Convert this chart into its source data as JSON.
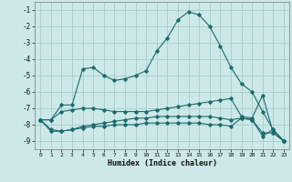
{
  "xlabel": "Humidex (Indice chaleur)",
  "bg_color": "#cce8e8",
  "grid_color": "#aacccc",
  "line_color": "#1a6b6b",
  "xlim": [
    -0.5,
    23.5
  ],
  "ylim": [
    -9.5,
    -0.5
  ],
  "yticks": [
    -1,
    -2,
    -3,
    -4,
    -5,
    -6,
    -7,
    -8,
    -9
  ],
  "xticks": [
    0,
    1,
    2,
    3,
    4,
    5,
    6,
    7,
    8,
    9,
    10,
    11,
    12,
    13,
    14,
    15,
    16,
    17,
    18,
    19,
    20,
    21,
    22,
    23
  ],
  "series1_x": [
    0,
    1,
    2,
    3,
    4,
    5,
    6,
    7,
    8,
    9,
    10,
    11,
    12,
    13,
    14,
    15,
    16,
    17,
    18,
    19,
    20,
    21,
    22,
    23
  ],
  "series1_y": [
    -7.7,
    -7.7,
    -6.8,
    -6.8,
    -4.6,
    -4.5,
    -5.0,
    -5.3,
    -5.2,
    -5.0,
    -4.7,
    -3.5,
    -2.7,
    -1.6,
    -1.1,
    -1.3,
    -2.0,
    -3.2,
    -4.5,
    -5.5,
    -6.0,
    -7.2,
    -8.3,
    -9.0
  ],
  "series2_x": [
    0,
    1,
    2,
    3,
    4,
    5,
    6,
    7,
    8,
    9,
    10,
    11,
    12,
    13,
    14,
    15,
    16,
    17,
    18,
    19,
    20,
    21,
    22,
    23
  ],
  "series2_y": [
    -7.7,
    -7.7,
    -7.2,
    -7.1,
    -7.0,
    -7.0,
    -7.1,
    -7.2,
    -7.2,
    -7.2,
    -7.2,
    -7.1,
    -7.0,
    -6.9,
    -6.8,
    -6.7,
    -6.6,
    -6.5,
    -6.4,
    -7.5,
    -7.6,
    -6.2,
    -8.5,
    -9.0
  ],
  "series3_x": [
    0,
    1,
    2,
    3,
    4,
    5,
    6,
    7,
    8,
    9,
    10,
    11,
    12,
    13,
    14,
    15,
    16,
    17,
    18,
    19,
    20,
    21,
    22,
    23
  ],
  "series3_y": [
    -7.7,
    -8.3,
    -8.4,
    -8.3,
    -8.1,
    -8.0,
    -7.9,
    -7.8,
    -7.7,
    -7.6,
    -7.6,
    -7.5,
    -7.5,
    -7.5,
    -7.5,
    -7.5,
    -7.5,
    -7.6,
    -7.7,
    -7.6,
    -7.7,
    -8.5,
    -8.5,
    -9.0
  ],
  "series4_x": [
    0,
    1,
    2,
    3,
    4,
    5,
    6,
    7,
    8,
    9,
    10,
    11,
    12,
    13,
    14,
    15,
    16,
    17,
    18,
    19,
    20,
    21,
    22,
    23
  ],
  "series4_y": [
    -7.7,
    -8.4,
    -8.4,
    -8.3,
    -8.2,
    -8.1,
    -8.1,
    -8.0,
    -8.0,
    -8.0,
    -7.9,
    -7.9,
    -7.9,
    -7.9,
    -7.9,
    -7.9,
    -8.0,
    -8.0,
    -8.1,
    -7.6,
    -7.7,
    -8.7,
    -8.3,
    -9.0
  ]
}
